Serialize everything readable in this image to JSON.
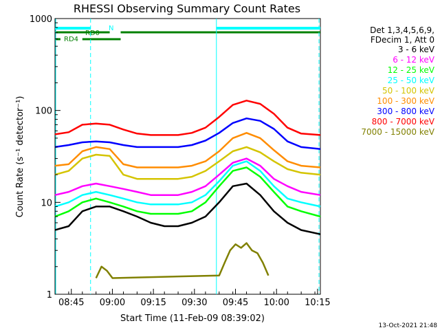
{
  "chart_data": {
    "type": "line",
    "title": "RHESSI Observing Summary Count Rates",
    "xlabel": "Start Time (11-Feb-09 08:39:02)",
    "ylabel": "Count Rate (s⁻¹ detector⁻¹)",
    "yscale": "log",
    "ylim": [
      1,
      1000
    ],
    "xlim_minutes": [
      0,
      97
    ],
    "x_ticks": [
      {
        "label": "08:45",
        "minute": 5.97
      },
      {
        "label": "09:00",
        "minute": 20.97
      },
      {
        "label": "09:15",
        "minute": 35.97
      },
      {
        "label": "09:30",
        "minute": 50.97
      },
      {
        "label": "09:45",
        "minute": 65.97
      },
      {
        "label": "10:00",
        "minute": 80.97
      },
      {
        "label": "10:15",
        "minute": 95.97
      }
    ],
    "y_ticks": [
      {
        "label": "1",
        "value": 1
      },
      {
        "label": "10",
        "value": 10
      },
      {
        "label": "100",
        "value": 100
      },
      {
        "label": "1000",
        "value": 1000
      }
    ],
    "legend_header": [
      "Det 1,3,4,5,6,9,",
      "FDecim 1, Att 0"
    ],
    "legend_position": "right",
    "series": [
      {
        "name": "3 - 6 keV",
        "color": "#000000",
        "x": [
          0,
          5,
          10,
          15,
          20,
          25,
          30,
          35,
          40,
          45,
          50,
          55,
          60,
          65,
          70,
          75,
          80,
          85,
          90,
          97
        ],
        "values": [
          5,
          5.5,
          8,
          9,
          9,
          8,
          7,
          6,
          5.5,
          5.5,
          6,
          7,
          10,
          15,
          16,
          12,
          8,
          6,
          5,
          4.5
        ]
      },
      {
        "name": "6 - 12 keV",
        "color": "#ff00ff",
        "x": [
          0,
          5,
          10,
          15,
          20,
          25,
          30,
          35,
          40,
          45,
          50,
          55,
          60,
          65,
          70,
          75,
          80,
          85,
          90,
          97
        ],
        "values": [
          12,
          13,
          15,
          16,
          15,
          14,
          13,
          12,
          12,
          12,
          13,
          15,
          20,
          27,
          30,
          25,
          18,
          15,
          13,
          12
        ]
      },
      {
        "name": "12 - 25 keV",
        "color": "#00ff00",
        "x": [
          0,
          5,
          10,
          15,
          20,
          25,
          30,
          35,
          40,
          45,
          50,
          55,
          60,
          65,
          70,
          75,
          80,
          85,
          90,
          97
        ],
        "values": [
          7,
          8,
          10,
          11,
          10,
          9,
          8,
          7.5,
          7.5,
          7.5,
          8,
          10,
          15,
          22,
          24,
          19,
          13,
          9,
          8,
          7
        ]
      },
      {
        "name": "25 - 50 keV",
        "color": "#00ffff",
        "x": [
          0,
          5,
          10,
          15,
          20,
          25,
          30,
          35,
          40,
          45,
          50,
          55,
          60,
          65,
          70,
          75,
          80,
          85,
          90,
          97
        ],
        "values": [
          9,
          10,
          12,
          13,
          12,
          11,
          10,
          9.5,
          9.5,
          9.5,
          10,
          12,
          17,
          25,
          28,
          22,
          15,
          11,
          10,
          9
        ]
      },
      {
        "name": "50 - 100 keV",
        "color": "#d4c400",
        "x": [
          0,
          5,
          10,
          15,
          20,
          25,
          30,
          35,
          40,
          45,
          50,
          55,
          60,
          65,
          70,
          75,
          80,
          85,
          90,
          97
        ],
        "values": [
          20,
          22,
          30,
          33,
          32,
          20,
          18,
          18,
          18,
          18,
          19,
          22,
          28,
          36,
          40,
          35,
          28,
          23,
          21,
          20
        ]
      },
      {
        "name": "100 - 300 keV",
        "color": "#ff8c00",
        "x": [
          0,
          5,
          10,
          15,
          20,
          25,
          30,
          35,
          40,
          45,
          50,
          55,
          60,
          65,
          70,
          75,
          80,
          85,
          90,
          97
        ],
        "values": [
          25,
          26,
          36,
          40,
          38,
          26,
          24,
          24,
          24,
          24,
          25,
          28,
          36,
          50,
          57,
          50,
          37,
          28,
          25,
          24
        ]
      },
      {
        "name": "300 - 800 keV",
        "color": "#0000ff",
        "x": [
          0,
          5,
          10,
          15,
          20,
          25,
          30,
          35,
          40,
          45,
          50,
          55,
          60,
          65,
          70,
          75,
          80,
          85,
          90,
          97
        ],
        "values": [
          40,
          42,
          45,
          46,
          45,
          42,
          40,
          40,
          40,
          40,
          42,
          47,
          57,
          73,
          82,
          77,
          63,
          46,
          40,
          38
        ]
      },
      {
        "name": "800 - 7000 keV",
        "color": "#ff0000",
        "x": [
          0,
          5,
          10,
          15,
          20,
          25,
          30,
          35,
          40,
          45,
          50,
          55,
          60,
          65,
          70,
          75,
          80,
          85,
          90,
          97
        ],
        "values": [
          55,
          58,
          70,
          72,
          70,
          62,
          56,
          54,
          54,
          54,
          57,
          65,
          85,
          115,
          128,
          118,
          92,
          65,
          56,
          54
        ]
      },
      {
        "name": "7000 - 15000 keV",
        "color": "#808000",
        "x": [
          15,
          17,
          19,
          21,
          60,
          62,
          64,
          66,
          68,
          70,
          72,
          74,
          76,
          78
        ],
        "values": [
          1.5,
          2,
          1.8,
          1.5,
          1.6,
          2.2,
          3,
          3.5,
          3.2,
          3.6,
          3,
          2.8,
          2.2,
          1.6
        ]
      }
    ],
    "flag_labels": [
      "N",
      "RD0",
      "RD4"
    ],
    "timestamp": "13-Oct-2021 21:48"
  }
}
